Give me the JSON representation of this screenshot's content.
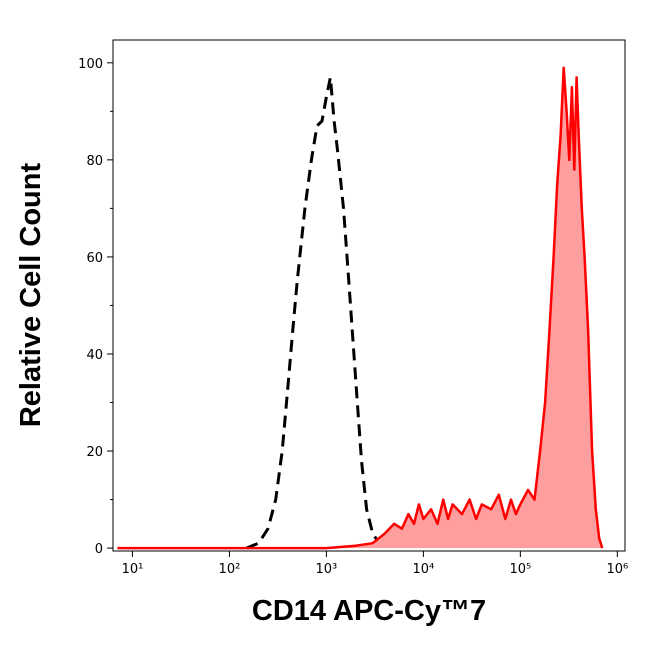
{
  "chart_data": {
    "type": "histogram-overlay",
    "xlabel": "CD14 APC-Cy™7",
    "ylabel": "Relative Cell Count",
    "xscale": "log",
    "xlim": [
      6.3,
      1200000
    ],
    "ylim": [
      -0.6,
      104.7
    ],
    "xticks": [
      {
        "value": 10,
        "label": "10¹"
      },
      {
        "value": 100,
        "label": "10²"
      },
      {
        "value": 1000,
        "label": "10³"
      },
      {
        "value": 10000,
        "label": "10⁴"
      },
      {
        "value": 100000,
        "label": "10⁵"
      },
      {
        "value": 1000000,
        "label": "10⁶"
      }
    ],
    "yticks": [
      0,
      20,
      40,
      60,
      80,
      100
    ],
    "series": [
      {
        "color": "#000000",
        "dashed": true,
        "filled": false,
        "x": [
          150,
          200,
          250,
          300,
          350,
          400,
          450,
          500,
          600,
          700,
          800,
          900,
          1000,
          1100,
          1200,
          1300,
          1500,
          1700,
          2000,
          2300,
          2600,
          3000,
          3500,
          4000
        ],
        "values": [
          0,
          1,
          4,
          10,
          20,
          33,
          45,
          55,
          70,
          80,
          87,
          88,
          93,
          97,
          88,
          82,
          70,
          55,
          35,
          18,
          8,
          3,
          1,
          0
        ]
      },
      {
        "color": "#ff0000",
        "fill": "#ff9e9e",
        "dashed": false,
        "filled": true,
        "x": [
          7,
          100,
          1000,
          2000,
          3000,
          4000,
          5000,
          6000,
          7000,
          8000,
          9000,
          10000,
          12000,
          14000,
          16000,
          18000,
          20000,
          25000,
          30000,
          35000,
          40000,
          50000,
          60000,
          70000,
          80000,
          90000,
          100000,
          120000,
          140000,
          160000,
          180000,
          200000,
          220000,
          240000,
          260000,
          280000,
          300000,
          320000,
          340000,
          360000,
          380000,
          400000,
          430000,
          460000,
          500000,
          550000,
          600000,
          650000,
          700000
        ],
        "values": [
          0,
          0,
          0,
          0.5,
          1,
          3,
          5,
          4,
          7,
          5,
          9,
          6,
          8,
          5,
          10,
          6,
          9,
          7,
          10,
          6,
          9,
          8,
          11,
          6,
          10,
          7,
          9,
          12,
          10,
          20,
          30,
          45,
          60,
          75,
          85,
          99,
          90,
          80,
          95,
          78,
          97,
          85,
          70,
          60,
          45,
          20,
          8,
          2,
          0
        ]
      }
    ]
  }
}
